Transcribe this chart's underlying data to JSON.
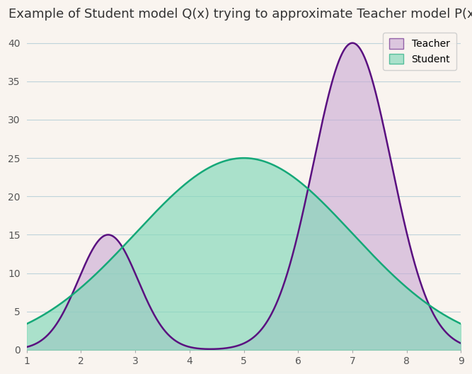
{
  "title": "Example of Student model Q(x) trying to approximate Teacher model P(x)",
  "title_fontsize": 13,
  "background_color": "#f9f4ef",
  "teacher_color_fill": "#c9a8d4",
  "teacher_color_line": "#5a1080",
  "student_color_fill": "#80d8b8",
  "student_color_line": "#15a878",
  "fill_alpha_teacher": 0.6,
  "fill_alpha_student": 0.65,
  "xlim": [
    1,
    9
  ],
  "ylim": [
    0,
    42
  ],
  "xticks": [
    1,
    2,
    3,
    4,
    5,
    6,
    7,
    8,
    9
  ],
  "yticks": [
    0,
    5,
    10,
    15,
    20,
    25,
    30,
    35,
    40
  ],
  "grid_color": "#90b8cc",
  "grid_alpha": 0.55,
  "legend_labels": [
    "Teacher",
    "Student"
  ],
  "teacher_g1_mu": 2.5,
  "teacher_g1_sigma": 0.55,
  "teacher_g1_scale": 15,
  "teacher_g2_mu": 7.0,
  "teacher_g2_sigma": 0.72,
  "teacher_g2_scale": 40,
  "student_mu": 5.0,
  "student_sigma": 2.0,
  "student_scale": 25
}
